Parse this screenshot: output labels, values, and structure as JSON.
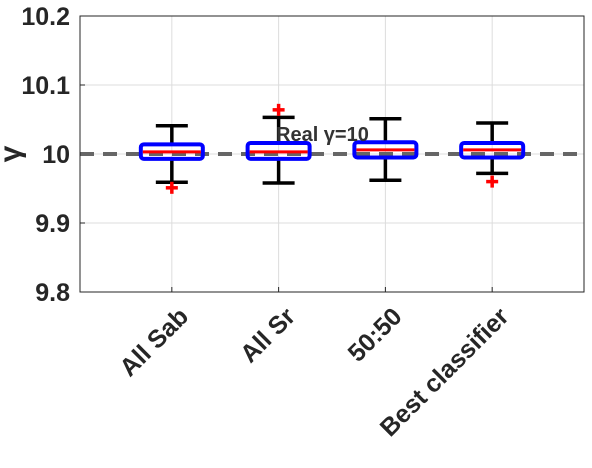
{
  "chart_data": {
    "type": "box",
    "ylabel": "γ",
    "xlabel": "",
    "ylim": [
      9.8,
      10.2
    ],
    "yticks": [
      "9.8",
      "9.9",
      "10",
      "10.1",
      "10.2"
    ],
    "grid": true,
    "categories": [
      "All Sab",
      "All Sr",
      "50:50",
      "Best classifier"
    ],
    "boxes": [
      {
        "category": "All Sab",
        "whisker_low": 9.959,
        "q1": 9.993,
        "median": 10.003,
        "q3": 10.014,
        "whisker_high": 10.041,
        "outliers": [
          9.951
        ]
      },
      {
        "category": "All Sr",
        "whisker_low": 9.958,
        "q1": 9.993,
        "median": 10.003,
        "q3": 10.016,
        "whisker_high": 10.053,
        "outliers": [
          10.064
        ]
      },
      {
        "category": "50:50",
        "whisker_low": 9.962,
        "q1": 9.995,
        "median": 10.006,
        "q3": 10.017,
        "whisker_high": 10.051,
        "outliers": []
      },
      {
        "category": "Best classifier",
        "whisker_low": 9.972,
        "q1": 9.995,
        "median": 10.006,
        "q3": 10.016,
        "whisker_high": 10.045,
        "outliers": [
          9.96
        ]
      }
    ],
    "reference_line": {
      "y": 10,
      "label": "Real γ=10",
      "style": "dashed"
    },
    "colors": {
      "box": "#0000ff",
      "median": "#ff0000",
      "whisker": "#000000",
      "outlier": "#ff0000",
      "reference": "#666666"
    }
  }
}
